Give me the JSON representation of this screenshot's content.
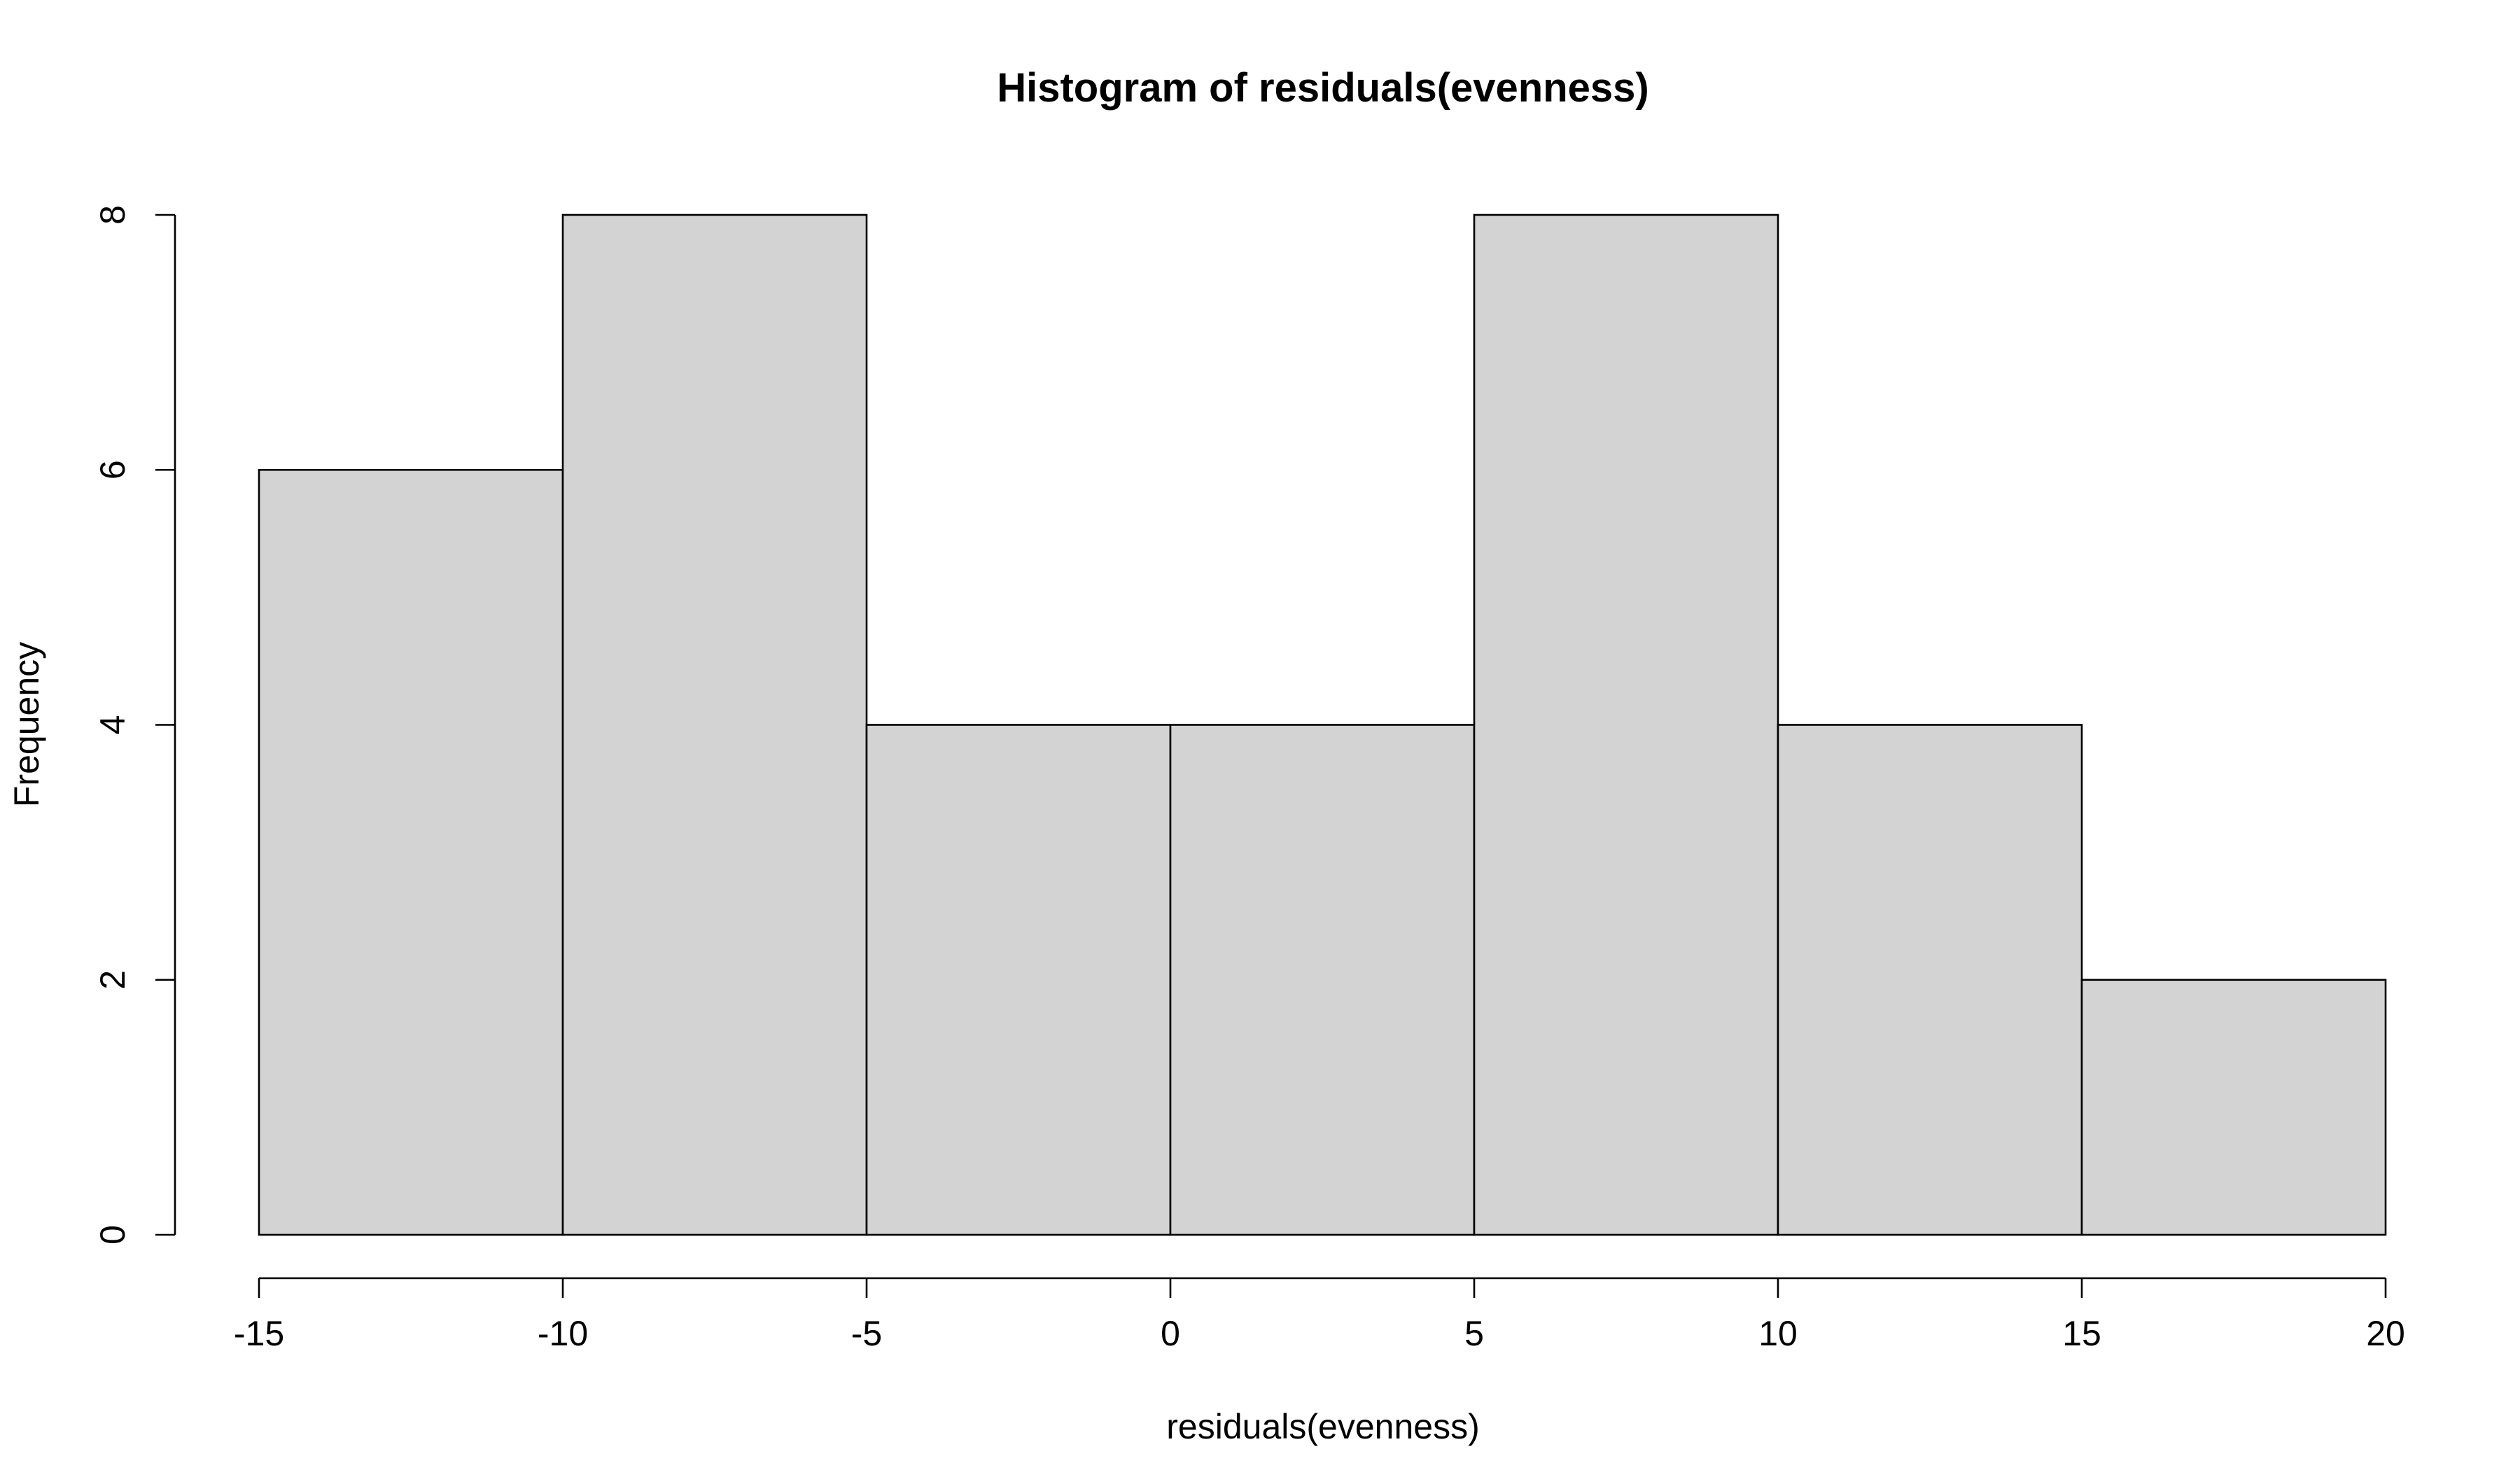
{
  "chart_data": {
    "type": "bar",
    "title": "Histogram of residuals(evenness)",
    "xlabel": "residuals(evenness)",
    "ylabel": "Frequency",
    "bins": [
      {
        "from": -15,
        "to": -10,
        "count": 6
      },
      {
        "from": -10,
        "to": -5,
        "count": 8
      },
      {
        "from": -5,
        "to": 0,
        "count": 4
      },
      {
        "from": 0,
        "to": 5,
        "count": 4
      },
      {
        "from": 5,
        "to": 10,
        "count": 8
      },
      {
        "from": 10,
        "to": 15,
        "count": 4
      },
      {
        "from": 15,
        "to": 20,
        "count": 2
      }
    ],
    "xlim": [
      -15,
      20
    ],
    "ylim": [
      0,
      8
    ],
    "x_ticks": [
      -15,
      -10,
      -5,
      0,
      5,
      10,
      15,
      20
    ],
    "y_ticks": [
      0,
      2,
      4,
      6,
      8
    ],
    "bar_color": "#d3d3d3",
    "edge_color": "#000000",
    "grid": false
  }
}
